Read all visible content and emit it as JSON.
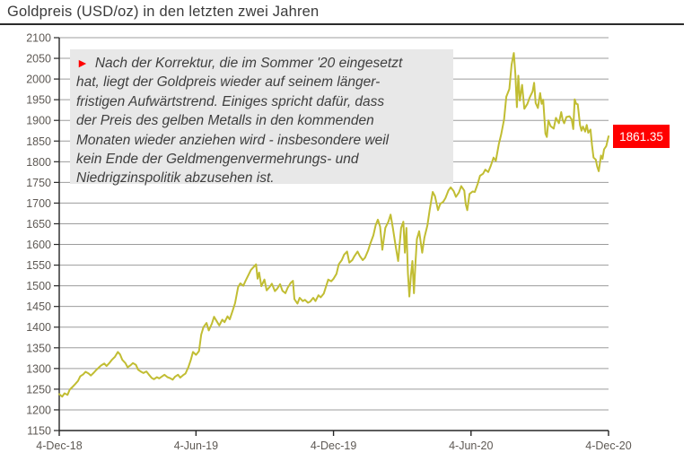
{
  "header": {
    "title": "Goldpreis (USD/oz) in den letzten zwei Jahren"
  },
  "note": {
    "marker": "►",
    "lines": [
      "Nach der Korrektur, die im Sommer '20 eingesetzt",
      "hat, liegt der Goldpreis wieder auf seinem länger-",
      "fristigen Aufwärtstrend. Einiges spricht dafür, dass",
      "der Preis des gelben Metalls in den kommenden",
      "Monaten wieder anziehen wird - insbesondere weil",
      "kein Ende der Geldmengenvermehrungs- und",
      "Niedrigzinspolitik abzusehen ist."
    ]
  },
  "price_label": {
    "text": "1861.35"
  },
  "chart_data": {
    "type": "line",
    "title": "Goldpreis (USD/oz) in den letzten zwei Jahren",
    "xlabel": "",
    "ylabel": "",
    "ylim": [
      1150,
      2100
    ],
    "x_max": 731,
    "grid": true,
    "legend_position": "none",
    "yticks": [
      1150,
      1200,
      1250,
      1300,
      1350,
      1400,
      1450,
      1500,
      1550,
      1600,
      1650,
      1700,
      1750,
      1800,
      1850,
      1900,
      1950,
      2000,
      2050,
      2100
    ],
    "xticks": [
      {
        "label": "4-Dec-18",
        "day": 0
      },
      {
        "label": "4-Jun-19",
        "day": 182
      },
      {
        "label": "4-Dec-19",
        "day": 365
      },
      {
        "label": "4-Jun-20",
        "day": 548
      },
      {
        "label": "4-Dec-20",
        "day": 731
      }
    ],
    "last_price": 1861.35,
    "colors": {
      "line": "#c1bd33",
      "grid": "#9c9c9c",
      "axis": "#262626",
      "tick_text": "#5e5954",
      "label_bg": "#ff0000",
      "label_text": "#ffffff",
      "note_bg": "#e8e8e8",
      "marker_red": "#ff0000"
    },
    "series": [
      {
        "name": "Goldpreis USD/oz",
        "points": [
          [
            0,
            1238
          ],
          [
            4,
            1232
          ],
          [
            7,
            1240
          ],
          [
            11,
            1236
          ],
          [
            14,
            1249
          ],
          [
            18,
            1256
          ],
          [
            21,
            1262
          ],
          [
            25,
            1270
          ],
          [
            28,
            1281
          ],
          [
            32,
            1286
          ],
          [
            35,
            1292
          ],
          [
            39,
            1288
          ],
          [
            42,
            1283
          ],
          [
            46,
            1290
          ],
          [
            49,
            1296
          ],
          [
            53,
            1303
          ],
          [
            56,
            1308
          ],
          [
            60,
            1312
          ],
          [
            63,
            1306
          ],
          [
            67,
            1314
          ],
          [
            70,
            1321
          ],
          [
            74,
            1328
          ],
          [
            78,
            1340
          ],
          [
            81,
            1334
          ],
          [
            84,
            1321
          ],
          [
            88,
            1313
          ],
          [
            91,
            1303
          ],
          [
            95,
            1308
          ],
          [
            98,
            1313
          ],
          [
            102,
            1309
          ],
          [
            105,
            1297
          ],
          [
            109,
            1292
          ],
          [
            112,
            1289
          ],
          [
            116,
            1293
          ],
          [
            119,
            1286
          ],
          [
            123,
            1277
          ],
          [
            126,
            1274
          ],
          [
            130,
            1279
          ],
          [
            133,
            1276
          ],
          [
            137,
            1281
          ],
          [
            140,
            1285
          ],
          [
            144,
            1279
          ],
          [
            147,
            1277
          ],
          [
            151,
            1273
          ],
          [
            154,
            1280
          ],
          [
            158,
            1285
          ],
          [
            161,
            1278
          ],
          [
            165,
            1284
          ],
          [
            168,
            1288
          ],
          [
            172,
            1304
          ],
          [
            175,
            1320
          ],
          [
            178,
            1340
          ],
          [
            182,
            1333
          ],
          [
            186,
            1342
          ],
          [
            189,
            1382
          ],
          [
            192,
            1400
          ],
          [
            196,
            1410
          ],
          [
            199,
            1392
          ],
          [
            203,
            1408
          ],
          [
            206,
            1425
          ],
          [
            210,
            1413
          ],
          [
            213,
            1404
          ],
          [
            217,
            1418
          ],
          [
            220,
            1412
          ],
          [
            224,
            1426
          ],
          [
            227,
            1419
          ],
          [
            231,
            1441
          ],
          [
            234,
            1458
          ],
          [
            238,
            1497
          ],
          [
            241,
            1506
          ],
          [
            245,
            1500
          ],
          [
            248,
            1512
          ],
          [
            252,
            1527
          ],
          [
            255,
            1538
          ],
          [
            259,
            1546
          ],
          [
            262,
            1552
          ],
          [
            264,
            1517
          ],
          [
            266,
            1532
          ],
          [
            269,
            1499
          ],
          [
            273,
            1515
          ],
          [
            276,
            1489
          ],
          [
            280,
            1497
          ],
          [
            283,
            1505
          ],
          [
            287,
            1487
          ],
          [
            290,
            1493
          ],
          [
            294,
            1504
          ],
          [
            297,
            1488
          ],
          [
            301,
            1482
          ],
          [
            304,
            1495
          ],
          [
            308,
            1507
          ],
          [
            311,
            1512
          ],
          [
            313,
            1468
          ],
          [
            317,
            1457
          ],
          [
            320,
            1471
          ],
          [
            324,
            1463
          ],
          [
            327,
            1466
          ],
          [
            331,
            1459
          ],
          [
            334,
            1462
          ],
          [
            338,
            1471
          ],
          [
            341,
            1463
          ],
          [
            345,
            1477
          ],
          [
            348,
            1472
          ],
          [
            352,
            1481
          ],
          [
            355,
            1498
          ],
          [
            358,
            1515
          ],
          [
            362,
            1511
          ],
          [
            365,
            1517
          ],
          [
            369,
            1529
          ],
          [
            372,
            1552
          ],
          [
            376,
            1562
          ],
          [
            379,
            1575
          ],
          [
            383,
            1583
          ],
          [
            386,
            1556
          ],
          [
            390,
            1562
          ],
          [
            393,
            1572
          ],
          [
            397,
            1583
          ],
          [
            400,
            1572
          ],
          [
            404,
            1562
          ],
          [
            407,
            1568
          ],
          [
            411,
            1585
          ],
          [
            414,
            1602
          ],
          [
            418,
            1622
          ],
          [
            421,
            1646
          ],
          [
            424,
            1660
          ],
          [
            427,
            1643
          ],
          [
            430,
            1587
          ],
          [
            434,
            1640
          ],
          [
            438,
            1655
          ],
          [
            441,
            1672
          ],
          [
            444,
            1640
          ],
          [
            448,
            1592
          ],
          [
            451,
            1560
          ],
          [
            455,
            1640
          ],
          [
            458,
            1655
          ],
          [
            460,
            1580
          ],
          [
            462,
            1640
          ],
          [
            464,
            1530
          ],
          [
            466,
            1474
          ],
          [
            468,
            1525
          ],
          [
            470,
            1560
          ],
          [
            472,
            1482
          ],
          [
            474,
            1552
          ],
          [
            476,
            1613
          ],
          [
            479,
            1632
          ],
          [
            483,
            1580
          ],
          [
            486,
            1617
          ],
          [
            490,
            1646
          ],
          [
            493,
            1683
          ],
          [
            497,
            1727
          ],
          [
            500,
            1717
          ],
          [
            504,
            1683
          ],
          [
            507,
            1698
          ],
          [
            511,
            1703
          ],
          [
            514,
            1712
          ],
          [
            518,
            1731
          ],
          [
            521,
            1738
          ],
          [
            525,
            1729
          ],
          [
            528,
            1715
          ],
          [
            532,
            1726
          ],
          [
            535,
            1741
          ],
          [
            539,
            1730
          ],
          [
            541,
            1697
          ],
          [
            543,
            1683
          ],
          [
            546,
            1722
          ],
          [
            550,
            1728
          ],
          [
            553,
            1727
          ],
          [
            557,
            1747
          ],
          [
            560,
            1766
          ],
          [
            564,
            1771
          ],
          [
            567,
            1781
          ],
          [
            571,
            1775
          ],
          [
            574,
            1789
          ],
          [
            578,
            1810
          ],
          [
            581,
            1802
          ],
          [
            585,
            1843
          ],
          [
            588,
            1865
          ],
          [
            592,
            1902
          ],
          [
            595,
            1957
          ],
          [
            599,
            1976
          ],
          [
            602,
            2035
          ],
          [
            605,
            2063
          ],
          [
            607,
            2012
          ],
          [
            609,
            1932
          ],
          [
            611,
            2008
          ],
          [
            613,
            1948
          ],
          [
            616,
            1986
          ],
          [
            619,
            1928
          ],
          [
            623,
            1940
          ],
          [
            626,
            1955
          ],
          [
            630,
            1970
          ],
          [
            632,
            1991
          ],
          [
            634,
            1942
          ],
          [
            637,
            1930
          ],
          [
            640,
            1966
          ],
          [
            642,
            1940
          ],
          [
            644,
            1950
          ],
          [
            647,
            1868
          ],
          [
            649,
            1860
          ],
          [
            651,
            1900
          ],
          [
            654,
            1886
          ],
          [
            658,
            1880
          ],
          [
            661,
            1906
          ],
          [
            665,
            1893
          ],
          [
            668,
            1920
          ],
          [
            670,
            1901
          ],
          [
            672,
            1893
          ],
          [
            675,
            1908
          ],
          [
            679,
            1910
          ],
          [
            682,
            1902
          ],
          [
            684,
            1879
          ],
          [
            686,
            1951
          ],
          [
            688,
            1940
          ],
          [
            690,
            1939
          ],
          [
            693,
            1889
          ],
          [
            695,
            1875
          ],
          [
            697,
            1885
          ],
          [
            700,
            1873
          ],
          [
            702,
            1889
          ],
          [
            704,
            1870
          ],
          [
            707,
            1878
          ],
          [
            709,
            1840
          ],
          [
            711,
            1810
          ],
          [
            714,
            1805
          ],
          [
            716,
            1788
          ],
          [
            718,
            1777
          ],
          [
            721,
            1815
          ],
          [
            723,
            1807
          ],
          [
            725,
            1830
          ],
          [
            728,
            1838
          ],
          [
            731,
            1861.35
          ]
        ]
      }
    ]
  }
}
